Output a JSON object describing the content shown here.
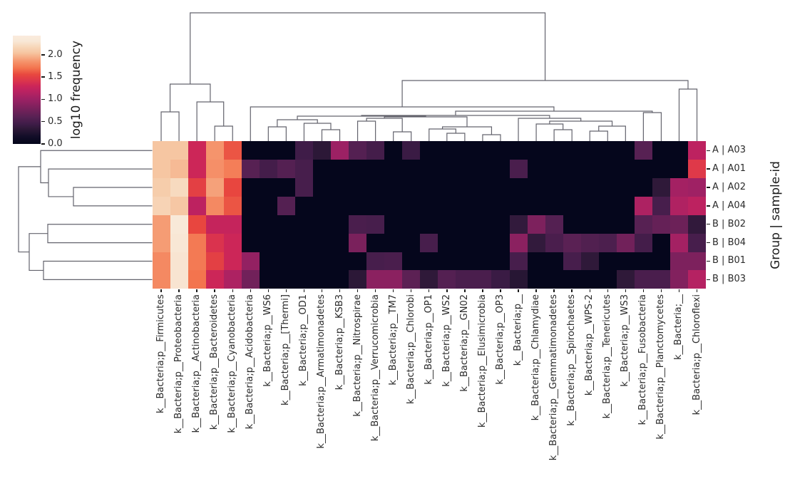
{
  "chart_data": {
    "type": "heatmap",
    "title": "",
    "colorbar_label": "log10 frequency",
    "ylabel": "Group | sample-id",
    "xlabel": "",
    "legend_position": "upper-left-colorbar",
    "grid": false,
    "vmin": 0,
    "vmax": 2.43,
    "colormap": "rocket",
    "colormap_stops": [
      [
        0.0,
        3,
        5,
        26
      ],
      [
        0.07,
        18,
        13,
        40
      ],
      [
        0.144,
        47,
        25,
        57
      ],
      [
        0.185,
        63,
        28,
        72
      ],
      [
        0.247,
        87,
        33,
        83
      ],
      [
        0.33,
        122,
        33,
        92
      ],
      [
        0.41,
        155,
        33,
        100
      ],
      [
        0.49,
        188,
        34,
        97
      ],
      [
        0.535,
        204,
        38,
        88
      ],
      [
        0.58,
        219,
        52,
        77
      ],
      [
        0.64,
        232,
        71,
        63
      ],
      [
        0.7,
        243,
        116,
        78
      ],
      [
        0.76,
        245,
        147,
        107
      ],
      [
        0.84,
        246,
        197,
        160
      ],
      [
        0.9,
        247,
        216,
        188
      ],
      [
        0.95,
        248,
        232,
        215
      ],
      [
        1.0,
        250,
        235,
        221
      ]
    ],
    "colorbar_ticks": {
      "values": [
        0,
        0.5,
        1.0,
        1.5,
        2.0
      ],
      "labels": [
        "0.0",
        "0.5",
        "1.0",
        "1.5",
        "2.0"
      ]
    },
    "rows": [
      "A | A03",
      "A | A01",
      "A | A02",
      "A | A04",
      "B | B02",
      "B | B04",
      "B | B01",
      "B | B03"
    ],
    "cols": [
      "k__Bacteria;p__Firmicutes",
      "k__Bacteria;p__Proteobacteria",
      "k__Bacteria;p__Actinobacteria",
      "k__Bacteria;p__Bacteroidetes",
      "k__Bacteria;p__Cyanobacteria",
      "k__Bacteria;p__Acidobacteria",
      "k__Bacteria;p__WS6",
      "k__Bacteria;p__[Thermi]",
      "k__Bacteria;p__OD1",
      "k__Bacteria;p__Armatimonadetes",
      "k__Bacteria;p__KSB3",
      "k__Bacteria;p__Nitrospirae",
      "k__Bacteria;p__Verrucomicrobia",
      "k__Bacteria;p__TM7",
      "k__Bacteria;p__Chlorobi",
      "k__Bacteria;p__OP1",
      "k__Bacteria;p__WS2",
      "k__Bacteria;p__GN02",
      "k__Bacteria;p__Elusimicrobia",
      "k__Bacteria;p__OP3",
      "k__Bacteria;p__",
      "k__Bacteria;p__Chlamydiae",
      "k__Bacteria;p__Gemmatimonadetes",
      "k__Bacteria;p__Spirochaetes",
      "k__Bacteria;p__WPS-2",
      "k__Bacteria;p__Tenericutes",
      "k__Bacteria;p__WS3",
      "k__Bacteria;p__Fusobacteria",
      "k__Bacteria;p__Planctomycetes",
      "k__Bacteria;__",
      "k__Bacteria;p__Chloroflexi"
    ],
    "values": [
      [
        2.05,
        2.05,
        1.3,
        1.85,
        1.6,
        0.02,
        0.02,
        0.02,
        0.45,
        0.33,
        1.0,
        0.58,
        0.48,
        0.02,
        0.42,
        0.02,
        0.02,
        0.02,
        0.02,
        0.02,
        0.02,
        0.02,
        0.02,
        0.02,
        0.02,
        0.02,
        0.02,
        0.6,
        0.02,
        0.02,
        1.2
      ],
      [
        2.05,
        2.0,
        1.3,
        1.83,
        1.75,
        0.6,
        0.48,
        0.58,
        0.5,
        0.02,
        0.02,
        0.02,
        0.02,
        0.02,
        0.02,
        0.02,
        0.02,
        0.02,
        0.02,
        0.02,
        0.52,
        0.02,
        0.02,
        0.02,
        0.02,
        0.02,
        0.02,
        0.02,
        0.02,
        0.02,
        1.45
      ],
      [
        2.1,
        2.2,
        1.5,
        1.9,
        1.55,
        0.02,
        0.02,
        0.02,
        0.5,
        0.02,
        0.02,
        0.02,
        0.02,
        0.02,
        0.02,
        0.02,
        0.02,
        0.02,
        0.02,
        0.02,
        0.02,
        0.02,
        0.02,
        0.02,
        0.02,
        0.02,
        0.02,
        0.02,
        0.35,
        1.05,
        1.02
      ],
      [
        2.15,
        2.06,
        1.2,
        1.8,
        1.6,
        0.02,
        0.02,
        0.58,
        0.02,
        0.02,
        0.02,
        0.02,
        0.02,
        0.02,
        0.02,
        0.02,
        0.02,
        0.02,
        0.02,
        0.02,
        0.02,
        0.02,
        0.02,
        0.02,
        0.02,
        0.02,
        0.02,
        1.1,
        0.5,
        1.12,
        1.2
      ],
      [
        1.88,
        2.33,
        1.55,
        1.25,
        1.25,
        0.02,
        0.02,
        0.02,
        0.02,
        0.02,
        0.02,
        0.52,
        0.5,
        0.02,
        0.02,
        0.02,
        0.02,
        0.02,
        0.02,
        0.02,
        0.37,
        0.82,
        0.58,
        0.02,
        0.02,
        0.02,
        0.02,
        0.6,
        0.68,
        0.72,
        0.36
      ],
      [
        1.88,
        2.3,
        1.73,
        1.4,
        1.3,
        0.02,
        0.02,
        0.02,
        0.02,
        0.02,
        0.02,
        0.8,
        0.02,
        0.02,
        0.02,
        0.5,
        0.02,
        0.02,
        0.02,
        0.02,
        0.9,
        0.37,
        0.52,
        0.62,
        0.56,
        0.53,
        0.75,
        0.48,
        0.02,
        1.05,
        0.5
      ],
      [
        1.8,
        2.28,
        1.73,
        1.5,
        1.3,
        0.95,
        0.02,
        0.02,
        0.02,
        0.02,
        0.02,
        0.02,
        0.5,
        0.52,
        0.02,
        0.02,
        0.02,
        0.02,
        0.02,
        0.02,
        0.5,
        0.02,
        0.02,
        0.5,
        0.35,
        0.02,
        0.02,
        0.02,
        0.02,
        0.82,
        0.82
      ],
      [
        1.8,
        2.28,
        1.7,
        1.3,
        1.1,
        0.75,
        0.02,
        0.02,
        0.02,
        0.02,
        0.02,
        0.33,
        0.9,
        0.9,
        0.63,
        0.35,
        0.58,
        0.52,
        0.52,
        0.42,
        0.3,
        0.02,
        0.02,
        0.02,
        0.02,
        0.02,
        0.35,
        0.52,
        0.52,
        0.85,
        1.15
      ]
    ],
    "col_dendrogram": {
      "merges": [
        [
          7,
          8,
          178
        ],
        [
          10,
          11,
          182
        ],
        [
          9,
          "m2",
          173
        ],
        [
          "m1",
          "m3",
          168
        ],
        [
          12,
          13,
          170
        ],
        [
          14,
          15,
          185
        ],
        [
          "m5",
          "m6",
          166
        ],
        [
          17,
          18,
          187
        ],
        [
          16,
          "m8",
          181
        ],
        [
          19,
          20,
          189
        ],
        [
          "m9",
          "m10",
          178
        ],
        [
          "m7",
          "m11",
          164
        ],
        [
          "m4",
          "m12",
          163
        ],
        [
          23,
          24,
          182
        ],
        [
          22,
          "m14",
          174
        ],
        [
          25,
          26,
          184
        ],
        [
          "m16",
          27,
          177
        ],
        [
          "m15",
          "m17",
          170
        ],
        [
          21,
          "m18",
          166
        ],
        [
          "m13",
          "m19",
          162
        ],
        [
          28,
          29,
          158
        ],
        [
          "m20",
          "m21",
          156
        ],
        [
          6,
          "m22",
          150
        ],
        [
          30,
          31,
          125
        ],
        [
          "m23",
          "m24",
          113
        ],
        [
          1,
          2,
          157
        ],
        [
          4,
          5,
          177
        ],
        [
          3,
          "m27",
          143
        ],
        [
          "m26",
          "m28",
          118
        ],
        [
          "m29",
          "m25",
          18
        ]
      ]
    },
    "row_dendrogram": {
      "merges": [
        [
          3,
          4,
          103
        ],
        [
          2,
          "m1",
          68
        ],
        [
          1,
          "m2",
          57
        ],
        [
          5,
          6,
          67
        ],
        [
          7,
          8,
          61
        ],
        [
          "m4",
          "m5",
          41
        ],
        [
          "m3",
          "m6",
          26
        ]
      ]
    },
    "line_color": "#63636d",
    "text_color": "#2b2b2b"
  }
}
